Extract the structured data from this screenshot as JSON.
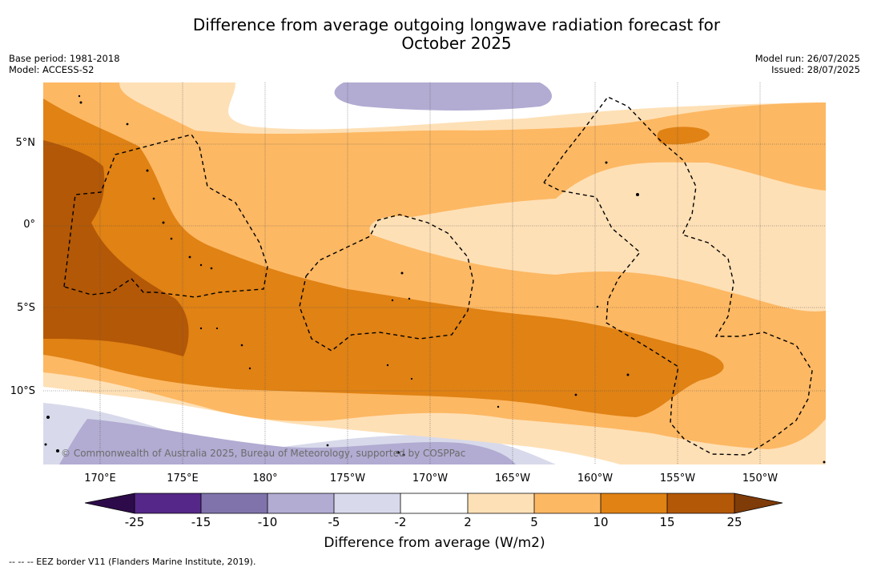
{
  "title_line1": "Difference from average outgoing longwave radiation forecast for",
  "title_line2": "October 2025",
  "meta": {
    "base_period": "Base period: 1981-2018",
    "model": "Model: ACCESS-S2",
    "model_run": "Model run: 26/07/2025",
    "issued": "Issued: 28/07/2025"
  },
  "lat_labels": [
    "5°N",
    "0°",
    "5°S",
    "10°S"
  ],
  "lon_labels": [
    "170°E",
    "175°E",
    "180°",
    "175°W",
    "170°W",
    "165°W",
    "160°W",
    "155°W",
    "150°W"
  ],
  "copyright": "© Commonwealth of Australia 2025, Bureau of Meteorology, supported by COSPPac",
  "colorbar": {
    "label": "Difference from average (W/m2)",
    "ticks": [
      "-25",
      "-15",
      "-10",
      "-5",
      "-2",
      "2",
      "5",
      "10",
      "15",
      "25"
    ],
    "colors": {
      "lt_neg25": "#2d0b4a",
      "neg25_neg15": "#542788",
      "neg15_neg10": "#8073ac",
      "neg10_neg5": "#b2abd2",
      "neg5_neg2": "#d8daeb",
      "neg2_2": "#ffffff",
      "2_5": "#fee0b6",
      "5_10": "#fdb863",
      "10_15": "#e08214",
      "15_25": "#b35806",
      "gt_25": "#7f3b08"
    }
  },
  "legend_note": "--  --  -- EEZ border V11 (Flanders Marine Institute, 2019)."
}
